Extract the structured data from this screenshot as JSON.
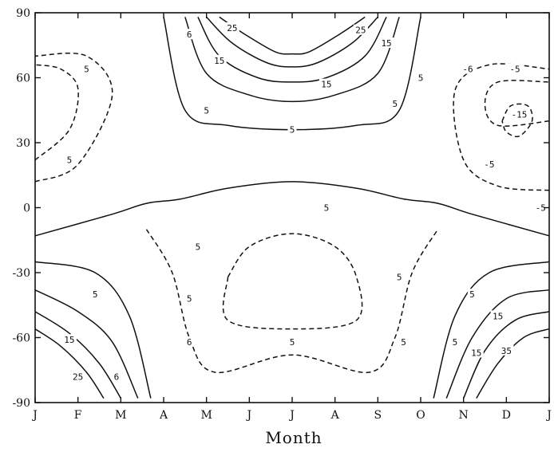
{
  "chart_data": {
    "type": "line",
    "xlabel": "Month",
    "ylabel": "",
    "x_ticks": [
      "J",
      "F",
      "M",
      "A",
      "M",
      "J",
      "J",
      "A",
      "S",
      "O",
      "N",
      "D",
      "J"
    ],
    "y_ticks": [
      "90",
      "60",
      "30",
      "0",
      "-30",
      "-60",
      "-90"
    ],
    "ylim": [
      -90,
      90
    ],
    "xlim": [
      0,
      12
    ],
    "grid": false,
    "legend": "none",
    "line_color": "#111111",
    "series": [
      {
        "style": "solid",
        "points": [
          [
            3.0,
            88
          ],
          [
            3.5,
            45
          ],
          [
            4.5,
            38
          ],
          [
            6,
            36
          ],
          [
            7.5,
            38
          ],
          [
            8.5,
            45
          ],
          [
            9.0,
            88
          ]
        ]
      },
      {
        "style": "solid",
        "points": [
          [
            3.5,
            88
          ],
          [
            4.0,
            62
          ],
          [
            5,
            52
          ],
          [
            6,
            49
          ],
          [
            7,
            52
          ],
          [
            8,
            62
          ],
          [
            8.5,
            88
          ]
        ]
      },
      {
        "style": "solid",
        "points": [
          [
            3.8,
            88
          ],
          [
            4.3,
            70
          ],
          [
            5.2,
            60
          ],
          [
            6,
            58
          ],
          [
            6.8,
            60
          ],
          [
            7.7,
            70
          ],
          [
            8.2,
            88
          ]
        ]
      },
      {
        "style": "solid",
        "points": [
          [
            4.0,
            88
          ],
          [
            4.6,
            76
          ],
          [
            5.4,
            67
          ],
          [
            6,
            65
          ],
          [
            6.6,
            67
          ],
          [
            7.4,
            76
          ],
          [
            8.0,
            88
          ]
        ]
      },
      {
        "style": "solid",
        "points": [
          [
            4.3,
            88
          ],
          [
            4.9,
            80
          ],
          [
            5.6,
            72
          ],
          [
            6,
            71
          ],
          [
            6.4,
            72
          ],
          [
            7.1,
            80
          ],
          [
            7.7,
            88
          ]
        ]
      },
      {
        "style": "solid",
        "points": [
          [
            0,
            -13
          ],
          [
            1.8,
            -3
          ],
          [
            2.6,
            2
          ],
          [
            3.4,
            4
          ],
          [
            4.5,
            9
          ],
          [
            6,
            12
          ],
          [
            7.5,
            9
          ],
          [
            8.6,
            4
          ],
          [
            9.4,
            2
          ],
          [
            10.2,
            -3
          ],
          [
            12,
            -13
          ]
        ]
      },
      {
        "style": "solid",
        "points": [
          [
            0,
            -25
          ],
          [
            1.4,
            -30
          ],
          [
            2.2,
            -50
          ],
          [
            2.7,
            -88
          ]
        ]
      },
      {
        "style": "solid",
        "points": [
          [
            0,
            -38
          ],
          [
            1.0,
            -48
          ],
          [
            1.8,
            -62
          ],
          [
            2.4,
            -88
          ]
        ]
      },
      {
        "style": "solid",
        "points": [
          [
            0,
            -48
          ],
          [
            0.8,
            -58
          ],
          [
            1.5,
            -72
          ],
          [
            2.0,
            -88
          ]
        ]
      },
      {
        "style": "solid",
        "points": [
          [
            0,
            -56
          ],
          [
            0.6,
            -64
          ],
          [
            1.2,
            -76
          ],
          [
            1.6,
            -88
          ]
        ]
      },
      {
        "style": "solid",
        "points": [
          [
            12,
            -25
          ],
          [
            10.6,
            -30
          ],
          [
            9.8,
            -50
          ],
          [
            9.3,
            -88
          ]
        ]
      },
      {
        "style": "solid",
        "points": [
          [
            12,
            -38
          ],
          [
            11.0,
            -42
          ],
          [
            10.2,
            -60
          ],
          [
            9.6,
            -88
          ]
        ]
      },
      {
        "style": "solid",
        "points": [
          [
            12,
            -48
          ],
          [
            11.2,
            -52
          ],
          [
            10.5,
            -66
          ],
          [
            10.0,
            -88
          ]
        ]
      },
      {
        "style": "solid",
        "points": [
          [
            12,
            -56
          ],
          [
            11.4,
            -60
          ],
          [
            10.8,
            -72
          ],
          [
            10.3,
            -88
          ]
        ]
      },
      {
        "style": "dashed",
        "points": [
          [
            2.6,
            -10
          ],
          [
            3.2,
            -30
          ],
          [
            3.6,
            -60
          ],
          [
            4.2,
            -76
          ],
          [
            6,
            -68
          ],
          [
            7.8,
            -76
          ],
          [
            8.4,
            -60
          ],
          [
            8.8,
            -30
          ],
          [
            9.4,
            -10
          ]
        ]
      },
      {
        "style": "dashed",
        "points": [
          [
            4.5,
            -32
          ],
          [
            5,
            -18
          ],
          [
            6,
            -12
          ],
          [
            7,
            -18
          ],
          [
            7.5,
            -32
          ],
          [
            7.5,
            -52
          ],
          [
            6,
            -56
          ],
          [
            4.5,
            -52
          ],
          [
            4.5,
            -32
          ]
        ]
      },
      {
        "style": "dashed",
        "points": [
          [
            0,
            12
          ],
          [
            1,
            20
          ],
          [
            1.8,
            52
          ],
          [
            1.2,
            70
          ],
          [
            0,
            70
          ]
        ]
      },
      {
        "style": "dashed",
        "points": [
          [
            0,
            22
          ],
          [
            0.8,
            36
          ],
          [
            1.0,
            55
          ],
          [
            0.6,
            64
          ],
          [
            0,
            66
          ]
        ]
      },
      {
        "style": "dashed",
        "points": [
          [
            12,
            8
          ],
          [
            10.8,
            10
          ],
          [
            10,
            22
          ],
          [
            9.8,
            54
          ],
          [
            10.6,
            66
          ],
          [
            12,
            64
          ]
        ]
      },
      {
        "style": "dashed",
        "points": [
          [
            12,
            40
          ],
          [
            10.8,
            38
          ],
          [
            10.5,
            48
          ],
          [
            10.8,
            58
          ],
          [
            12,
            58
          ]
        ]
      },
      {
        "style": "dashed",
        "points": [
          [
            10.9,
            40
          ],
          [
            11.1,
            47
          ],
          [
            11.5,
            47
          ],
          [
            11.6,
            40
          ],
          [
            11.3,
            33
          ],
          [
            11.0,
            35
          ],
          [
            10.9,
            40
          ]
        ]
      }
    ],
    "annotations": [
      {
        "text": "25",
        "x": 4.6,
        "y": 83
      },
      {
        "text": "25",
        "x": 7.6,
        "y": 82
      },
      {
        "text": "15",
        "x": 4.3,
        "y": 68
      },
      {
        "text": "15",
        "x": 6.8,
        "y": 57
      },
      {
        "text": "15",
        "x": 8.2,
        "y": 76
      },
      {
        "text": "5",
        "x": 4.0,
        "y": 45
      },
      {
        "text": "5",
        "x": 6.0,
        "y": 36
      },
      {
        "text": "5",
        "x": 8.4,
        "y": 48
      },
      {
        "text": "5",
        "x": 9.0,
        "y": 60
      },
      {
        "text": "6",
        "x": 3.6,
        "y": 80
      },
      {
        "text": "5",
        "x": 1.2,
        "y": 64
      },
      {
        "text": "5",
        "x": 0.8,
        "y": 22
      },
      {
        "text": "-6",
        "x": 10.1,
        "y": 64
      },
      {
        "text": "-5",
        "x": 11.2,
        "y": 64
      },
      {
        "text": "-15",
        "x": 11.3,
        "y": 43
      },
      {
        "text": "-5",
        "x": 10.6,
        "y": 20
      },
      {
        "text": "-5",
        "x": 11.8,
        "y": 0
      },
      {
        "text": "5",
        "x": 6.8,
        "y": 0
      },
      {
        "text": "5",
        "x": 3.8,
        "y": -18
      },
      {
        "text": "5",
        "x": 8.5,
        "y": -32
      },
      {
        "text": "5",
        "x": 3.6,
        "y": -42
      },
      {
        "text": "6",
        "x": 3.6,
        "y": -62
      },
      {
        "text": "5",
        "x": 6.0,
        "y": -62
      },
      {
        "text": "5",
        "x": 8.6,
        "y": -62
      },
      {
        "text": "5",
        "x": 1.4,
        "y": -40
      },
      {
        "text": "15",
        "x": 0.8,
        "y": -61
      },
      {
        "text": "25",
        "x": 1.0,
        "y": -78
      },
      {
        "text": "6",
        "x": 1.9,
        "y": -78
      },
      {
        "text": "5",
        "x": 10.2,
        "y": -40
      },
      {
        "text": "15",
        "x": 10.8,
        "y": -50
      },
      {
        "text": "5",
        "x": 9.8,
        "y": -62
      },
      {
        "text": "15",
        "x": 10.3,
        "y": -67
      },
      {
        "text": "35",
        "x": 11.0,
        "y": -66
      }
    ]
  }
}
